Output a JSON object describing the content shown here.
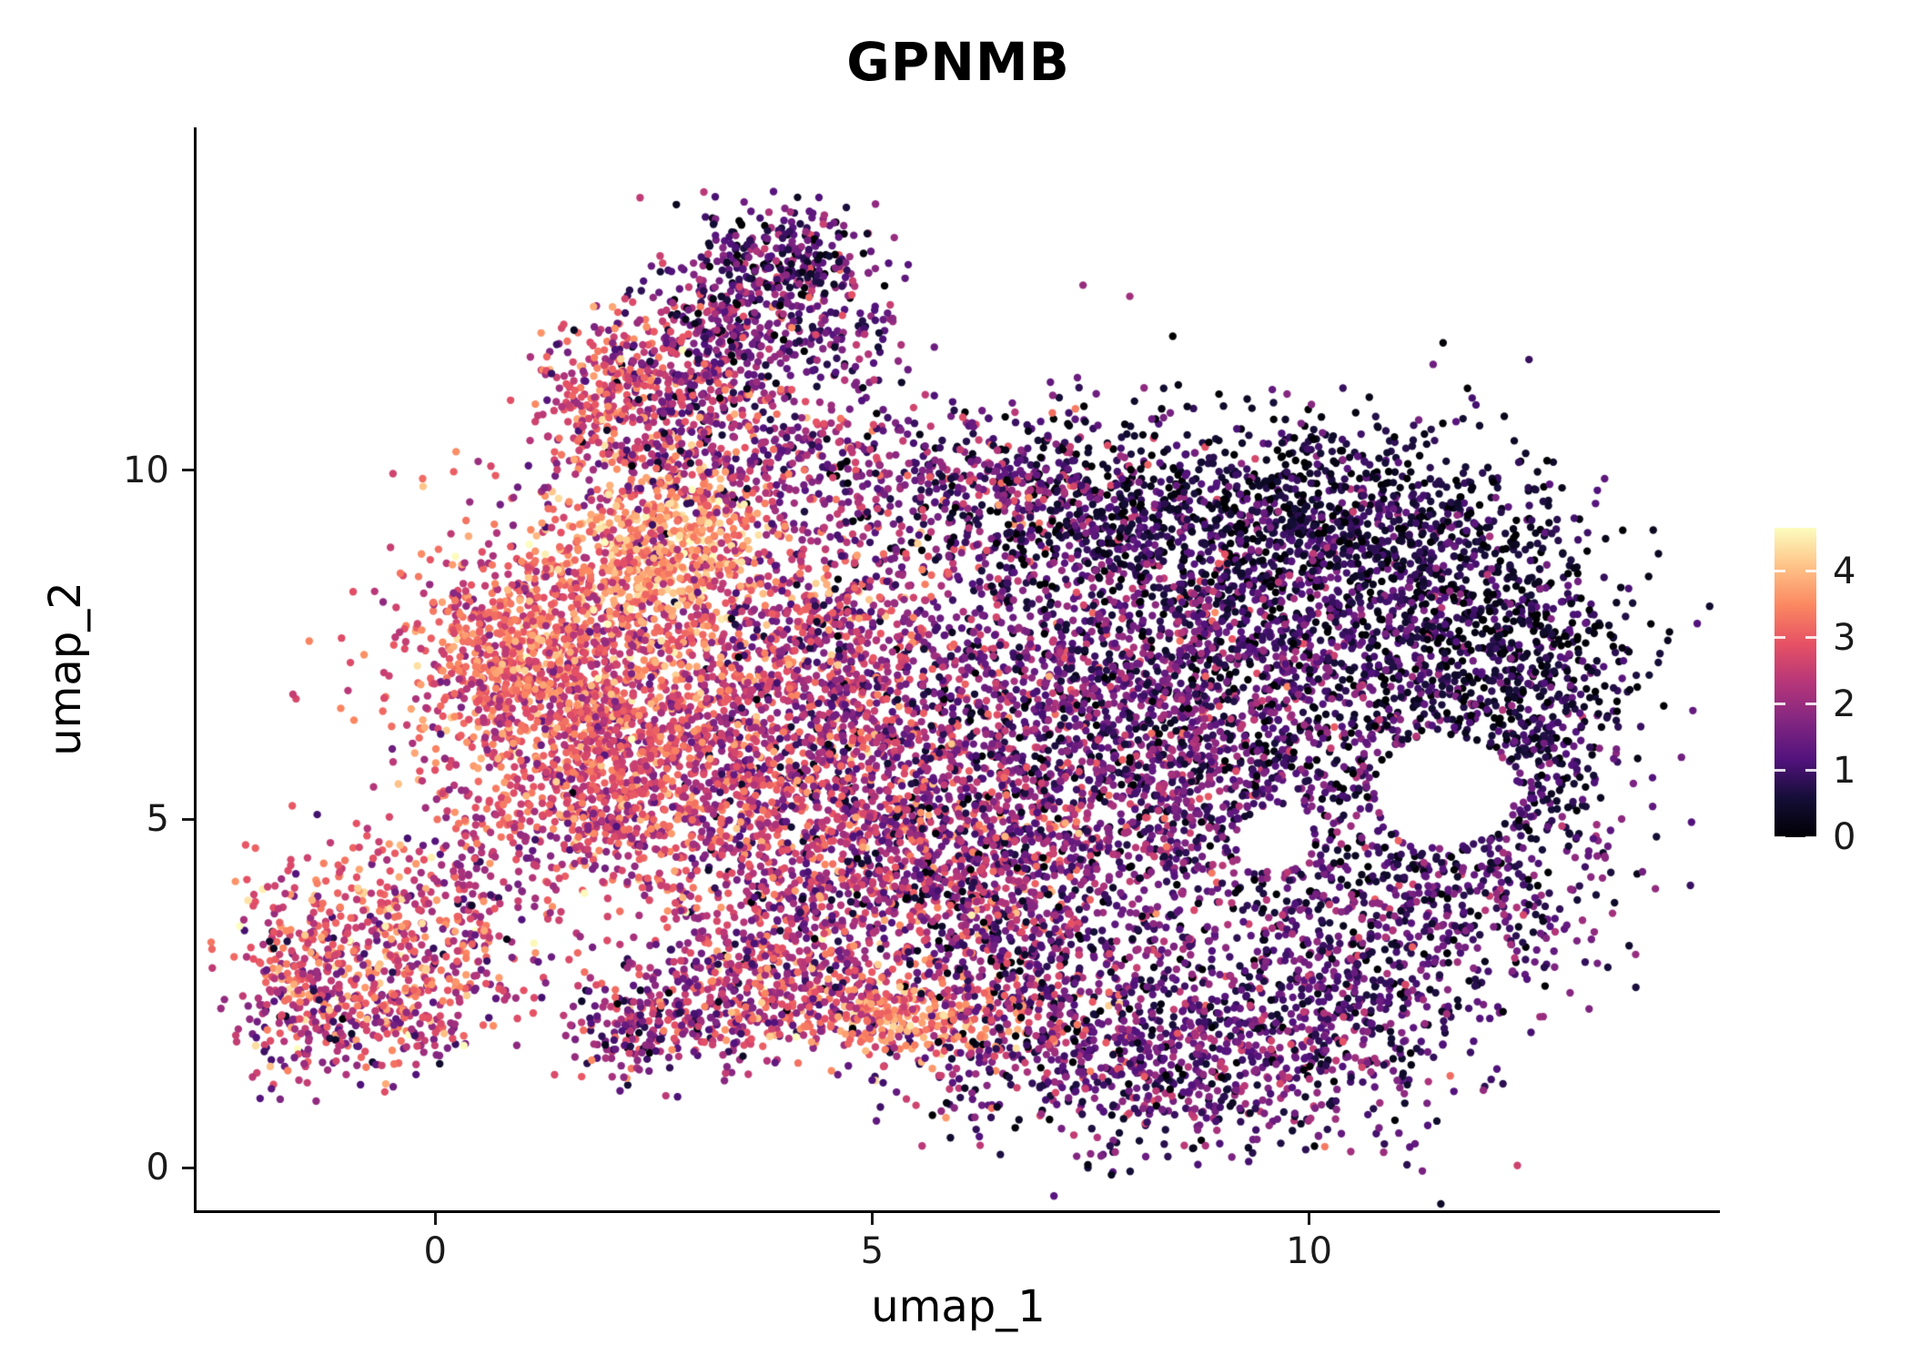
{
  "chart_data": {
    "type": "scatter",
    "title": "GPNMB",
    "xlabel": "umap_1",
    "ylabel": "umap_2",
    "x_ticks": [
      0,
      5,
      10
    ],
    "y_ticks": [
      0,
      5,
      10
    ],
    "x_range": [
      -2.73,
      14.7
    ],
    "y_range": [
      -0.61,
      14.92
    ],
    "grid": false,
    "legend_position": "right",
    "point_radius": 4.2,
    "seed": 42,
    "colorbar": {
      "ticks": [
        0,
        1,
        2,
        3,
        4
      ],
      "vmin": 0,
      "vmax": 4.65,
      "colormap": "magma",
      "stops": [
        {
          "t": 0.0,
          "c": "#000004"
        },
        {
          "t": 0.125,
          "c": "#140E36"
        },
        {
          "t": 0.25,
          "c": "#51127C"
        },
        {
          "t": 0.375,
          "c": "#822681"
        },
        {
          "t": 0.5,
          "c": "#B63679"
        },
        {
          "t": 0.625,
          "c": "#E65164"
        },
        {
          "t": 0.75,
          "c": "#FB8861"
        },
        {
          "t": 0.875,
          "c": "#FEC287"
        },
        {
          "t": 1.0,
          "c": "#FCFDBF"
        }
      ]
    },
    "clusters": [
      {
        "x": -0.9,
        "y": 3.1,
        "sx": 0.75,
        "sy": 0.75,
        "n": 480,
        "m": 2.9,
        "s": 0.8
      },
      {
        "x": -1.4,
        "y": 2.3,
        "sx": 0.45,
        "sy": 0.55,
        "n": 160,
        "m": 1.9,
        "s": 0.8
      },
      {
        "x": -0.3,
        "y": 2.2,
        "sx": 0.5,
        "sy": 0.45,
        "n": 140,
        "m": 2.4,
        "s": 0.8
      },
      {
        "x": 0.3,
        "y": 4.0,
        "sx": 0.35,
        "sy": 0.5,
        "n": 80,
        "m": 2.2,
        "s": 0.7
      },
      {
        "x": 1.6,
        "y": 7.0,
        "sx": 1.0,
        "sy": 1.1,
        "n": 1500,
        "m": 2.9,
        "s": 0.65
      },
      {
        "x": 2.6,
        "y": 8.9,
        "sx": 0.6,
        "sy": 0.55,
        "n": 500,
        "m": 3.7,
        "s": 0.5
      },
      {
        "x": 0.9,
        "y": 7.4,
        "sx": 0.45,
        "sy": 0.6,
        "n": 220,
        "m": 3.3,
        "s": 0.5
      },
      {
        "x": 2.8,
        "y": 5.6,
        "sx": 0.9,
        "sy": 0.8,
        "n": 600,
        "m": 2.6,
        "s": 0.7
      },
      {
        "x": 1.7,
        "y": 4.9,
        "sx": 0.6,
        "sy": 0.45,
        "n": 220,
        "m": 2.5,
        "s": 0.7
      },
      {
        "x": 4.3,
        "y": 7.3,
        "sx": 0.9,
        "sy": 1.2,
        "n": 900,
        "m": 2.3,
        "s": 0.8
      },
      {
        "x": 4.8,
        "y": 5.0,
        "sx": 0.9,
        "sy": 1.0,
        "n": 700,
        "m": 2.1,
        "s": 0.8
      },
      {
        "x": 3.9,
        "y": 3.6,
        "sx": 0.7,
        "sy": 0.6,
        "n": 300,
        "m": 2.2,
        "s": 0.8
      },
      {
        "x": 3.3,
        "y": 10.1,
        "sx": 1.0,
        "sy": 0.5,
        "n": 420,
        "m": 2.1,
        "s": 0.9
      },
      {
        "x": 2.9,
        "y": 11.3,
        "sx": 0.55,
        "sy": 0.55,
        "n": 300,
        "m": 2.0,
        "s": 0.9
      },
      {
        "x": 1.95,
        "y": 11.1,
        "sx": 0.4,
        "sy": 0.5,
        "n": 200,
        "m": 2.9,
        "s": 0.6
      },
      {
        "x": 3.5,
        "y": 12.3,
        "sx": 0.55,
        "sy": 0.55,
        "n": 300,
        "m": 1.5,
        "s": 0.8
      },
      {
        "x": 4.0,
        "y": 13.1,
        "sx": 0.5,
        "sy": 0.35,
        "n": 220,
        "m": 1.1,
        "s": 0.8
      },
      {
        "x": 4.6,
        "y": 11.9,
        "sx": 0.4,
        "sy": 0.6,
        "n": 120,
        "m": 1.4,
        "s": 0.7
      },
      {
        "x": 5.6,
        "y": 9.9,
        "sx": 0.9,
        "sy": 0.5,
        "n": 150,
        "m": 1.6,
        "s": 0.9
      },
      {
        "x": 7.3,
        "y": 6.2,
        "sx": 1.5,
        "sy": 1.8,
        "n": 2300,
        "m": 1.5,
        "s": 0.8
      },
      {
        "x": 9.8,
        "y": 6.8,
        "sx": 1.2,
        "sy": 1.5,
        "n": 1500,
        "m": 1.0,
        "s": 0.7
      },
      {
        "x": 8.9,
        "y": 9.4,
        "sx": 1.7,
        "sy": 0.7,
        "n": 800,
        "m": 0.55,
        "s": 0.5
      },
      {
        "x": 10.8,
        "y": 9.0,
        "sx": 0.9,
        "sy": 0.7,
        "n": 450,
        "m": 0.7,
        "s": 0.6
      },
      {
        "x": 12.3,
        "y": 7.5,
        "sx": 0.8,
        "sy": 0.9,
        "n": 600,
        "m": 0.5,
        "s": 0.5
      },
      {
        "x": 12.6,
        "y": 5.8,
        "sx": 0.5,
        "sy": 0.8,
        "n": 250,
        "m": 0.9,
        "s": 0.6
      },
      {
        "x": 11.7,
        "y": 3.9,
        "sx": 0.9,
        "sy": 0.8,
        "n": 420,
        "m": 1.1,
        "s": 0.7
      },
      {
        "x": 10.3,
        "y": 2.6,
        "sx": 0.9,
        "sy": 0.8,
        "n": 450,
        "m": 1.2,
        "s": 0.7
      },
      {
        "x": 8.8,
        "y": 1.5,
        "sx": 1.3,
        "sy": 0.7,
        "n": 700,
        "m": 1.3,
        "s": 0.8
      },
      {
        "x": 6.9,
        "y": 2.4,
        "sx": 0.9,
        "sy": 0.9,
        "n": 500,
        "m": 1.6,
        "s": 0.9
      },
      {
        "x": 6.2,
        "y": 4.0,
        "sx": 0.8,
        "sy": 0.9,
        "n": 450,
        "m": 1.9,
        "s": 0.9
      },
      {
        "x": 5.3,
        "y": 2.15,
        "sx": 0.75,
        "sy": 0.3,
        "n": 260,
        "m": 3.4,
        "s": 0.5
      },
      {
        "x": 4.4,
        "y": 2.6,
        "sx": 0.6,
        "sy": 0.4,
        "n": 200,
        "m": 2.5,
        "s": 0.8
      },
      {
        "x": 3.1,
        "y": 2.3,
        "sx": 0.7,
        "sy": 0.45,
        "n": 260,
        "m": 2.2,
        "s": 0.9
      },
      {
        "x": 2.3,
        "y": 1.9,
        "sx": 0.4,
        "sy": 0.35,
        "n": 120,
        "m": 1.8,
        "s": 0.9
      },
      {
        "x": 0.9,
        "y": 3.4,
        "sx": 0.6,
        "sy": 0.6,
        "n": 60,
        "m": 2.3,
        "s": 0.9
      },
      {
        "x": 6.8,
        "y": 9.5,
        "sx": 0.8,
        "sy": 0.6,
        "n": 250,
        "m": 1.2,
        "s": 0.9
      }
    ],
    "holes": [
      {
        "x": 11.55,
        "y": 5.4,
        "r": 0.8
      },
      {
        "x": 9.6,
        "y": 4.7,
        "r": 0.45
      }
    ]
  }
}
